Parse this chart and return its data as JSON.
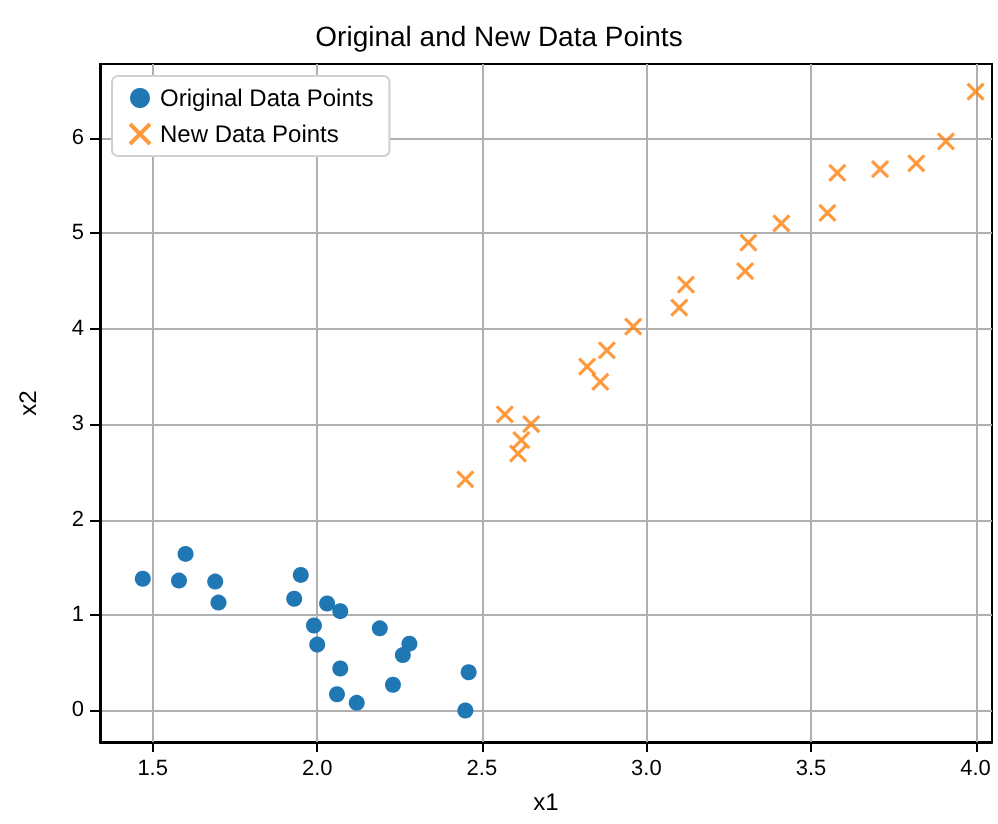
{
  "chart_data": {
    "type": "scatter",
    "title": "Original and New Data Points",
    "xlabel": "x1",
    "ylabel": "x2",
    "series": [
      {
        "name": "Original Data Points",
        "color": "#1f77b4",
        "marker": "circle",
        "x": [
          1.47,
          1.6,
          1.58,
          1.69,
          1.7,
          1.95,
          1.93,
          2.03,
          2.07,
          1.99,
          2.0,
          2.07,
          2.06,
          2.12,
          2.19,
          2.28,
          2.26,
          2.23,
          2.46,
          2.45
        ],
        "values": [
          1.38,
          1.64,
          1.36,
          1.35,
          1.13,
          1.42,
          1.17,
          1.12,
          1.04,
          0.89,
          0.69,
          0.44,
          0.17,
          0.08,
          0.86,
          0.7,
          0.58,
          0.27,
          0.4,
          0.0
        ]
      },
      {
        "name": "New Data Points",
        "color": "#ff7f0e",
        "marker": "cross",
        "x": [
          2.45,
          2.57,
          2.65,
          2.62,
          2.61,
          2.82,
          2.86,
          2.88,
          2.96,
          3.1,
          3.12,
          3.3,
          3.31,
          3.41,
          3.55,
          3.58,
          3.71,
          3.82,
          3.91,
          4.0
        ],
        "values": [
          2.42,
          3.1,
          3.0,
          2.83,
          2.69,
          3.6,
          3.44,
          3.77,
          4.02,
          4.22,
          4.46,
          4.6,
          4.9,
          5.1,
          5.21,
          5.63,
          5.67,
          5.73,
          5.96,
          6.48
        ]
      }
    ],
    "xlim": [
      1.34,
      4.05
    ],
    "xticks": [
      {
        "value": 1.5,
        "label": "1.5"
      },
      {
        "value": 2,
        "label": "2.0"
      },
      {
        "value": 2.5,
        "label": "2.5"
      },
      {
        "value": 3,
        "label": "3.0"
      },
      {
        "value": 3.5,
        "label": "3.5"
      },
      {
        "value": 4,
        "label": "4.0"
      }
    ],
    "ylim": [
      -0.33,
      6.77
    ],
    "yticks": [
      0,
      1,
      2,
      3,
      4,
      5,
      6
    ],
    "grid": true,
    "legend": "top left"
  }
}
